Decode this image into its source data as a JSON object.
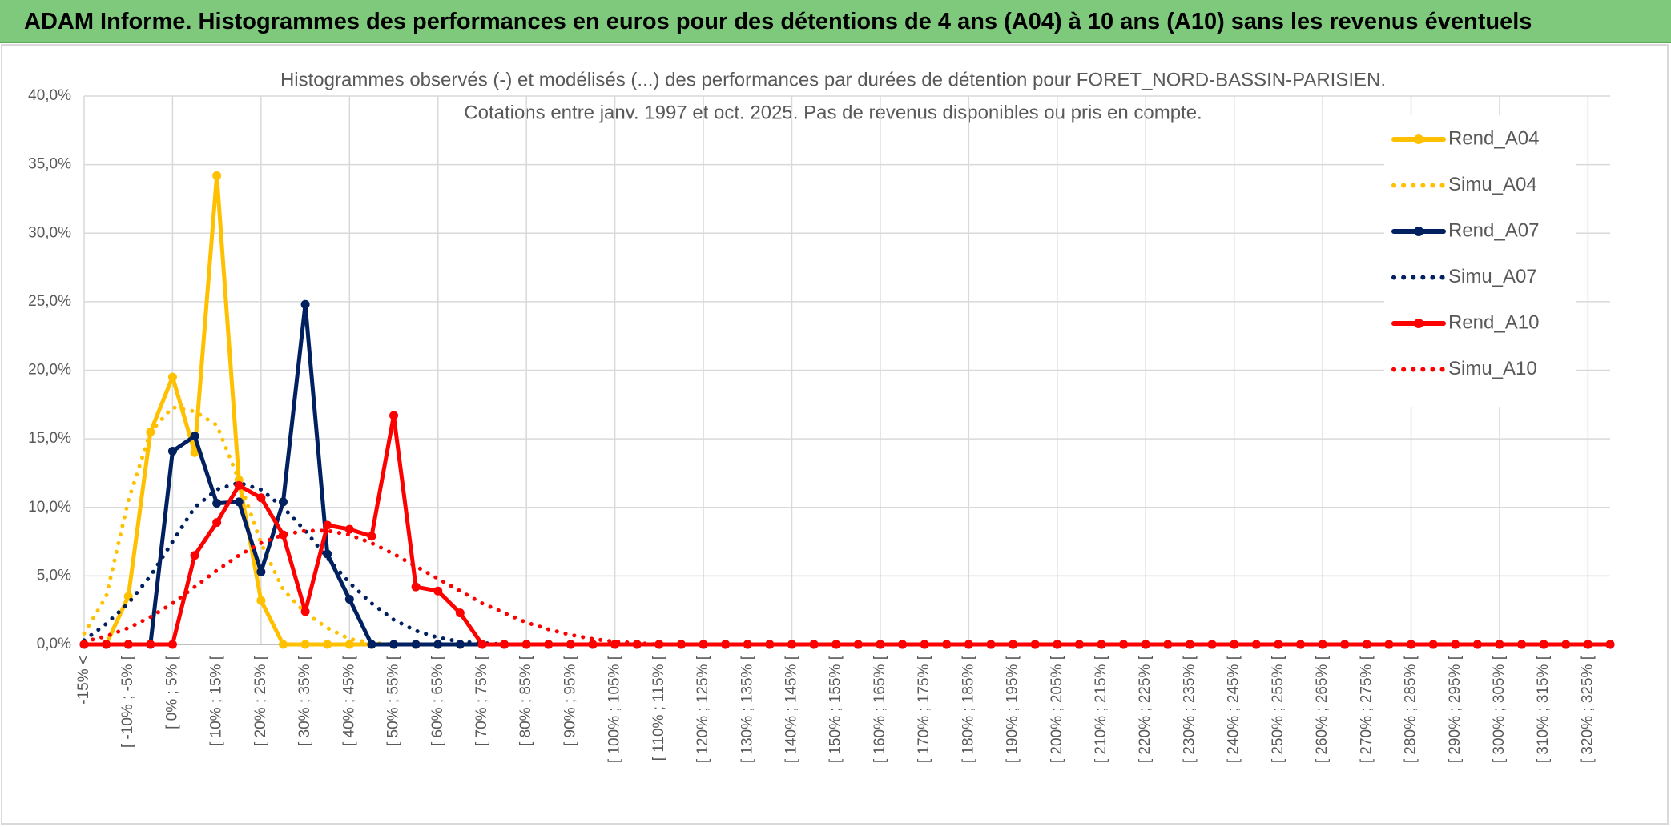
{
  "header": {
    "title": "ADAM Informe. Histogrammes des performances en euros pour des détentions de 4 ans (A04) à 10 ans (A10) sans les revenus éventuels"
  },
  "chart_data": {
    "type": "line",
    "title": "Histogrammes observés (-) et modélisés (...) des performances par durées de détention pour FORET_NORD-BASSIN-PARISIEN.",
    "subtitle": "Cotations entre janv. 1997 et oct. 2025. Pas de revenus disponibles ou pris en compte.",
    "categories": [
      "-15% <",
      null,
      "[ -10% ; -5% [",
      null,
      "[ 0% ; 5% [",
      null,
      "[ 10% ; 15% [",
      null,
      "[ 20% ; 25% [",
      null,
      "[ 30% ; 35% [",
      null,
      "[ 40% ; 45% [",
      null,
      "[ 50% ; 55% [",
      null,
      "[ 60% ; 65% [",
      null,
      "[ 70% ; 75% [",
      null,
      "[ 80% ; 85% [",
      null,
      "[ 90% ; 95% [",
      null,
      "[ 100% ; 105% [",
      null,
      "[ 110% ; 115% [",
      null,
      "[ 120% ; 125% [",
      null,
      "[ 130% ; 135% [",
      null,
      "[ 140% ; 145% [",
      null,
      "[ 150% ; 155% [",
      null,
      "[ 160% ; 165% [",
      null,
      "[ 170% ; 175% [",
      null,
      "[ 180% ; 185% [",
      null,
      "[ 190% ; 195% [",
      null,
      "[ 200% ; 205% [",
      null,
      "[ 210% ; 215% [",
      null,
      "[ 220% ; 225% [",
      null,
      "[ 230% ; 235% [",
      null,
      "[ 240% ; 245% [",
      null,
      "[ 250% ; 255% [",
      null,
      "[ 260% ; 265% [",
      null,
      "[ 270% ; 275% [",
      null,
      "[ 280% ; 285% [",
      null,
      "[ 290% ; 295% [",
      null,
      "[ 300% ; 305% [",
      null,
      "[ 310% ; 315% [",
      null,
      "[ 320% ; 325% [",
      null
    ],
    "series": [
      {
        "name": "Rend_A04",
        "color": "#ffc000",
        "style": "solid",
        "values": [
          0,
          0,
          3.5,
          15.5,
          19.5,
          14,
          34.2,
          12,
          3.2,
          0,
          0,
          0,
          0,
          0,
          0,
          0,
          0,
          0,
          0,
          0,
          0,
          0,
          0,
          0,
          0,
          0,
          0,
          0,
          0,
          0,
          0,
          0,
          0,
          0,
          0,
          0,
          0,
          0,
          0,
          0,
          0,
          0,
          0,
          0,
          0,
          0,
          0,
          0,
          0,
          0,
          0,
          0,
          0,
          0,
          0,
          0,
          0,
          0,
          0,
          0,
          0,
          0,
          0,
          0,
          0,
          0,
          0,
          0,
          0,
          0
        ]
      },
      {
        "name": "Simu_A04",
        "color": "#ffc000",
        "style": "dotted",
        "values": [
          0.8,
          3.5,
          10.5,
          15.5,
          17.3,
          17,
          16,
          12,
          7.4,
          4,
          2.3,
          1.2,
          0.4,
          0.1,
          0,
          0,
          0,
          0,
          0,
          0,
          0,
          0,
          0,
          0,
          0,
          0,
          0,
          0,
          0,
          0,
          0,
          0,
          0,
          0,
          0,
          0,
          0,
          0,
          0,
          0,
          0,
          0,
          0,
          0,
          0,
          0,
          0,
          0,
          0,
          0,
          0,
          0,
          0,
          0,
          0,
          0,
          0,
          0,
          0,
          0,
          0,
          0,
          0,
          0,
          0,
          0,
          0,
          0,
          0,
          0
        ]
      },
      {
        "name": "Rend_A07",
        "color": "#002060",
        "style": "solid",
        "values": [
          0,
          0,
          0,
          0,
          14.1,
          15.2,
          10.3,
          10.4,
          5.3,
          10.4,
          24.8,
          6.6,
          3.3,
          0,
          0,
          0,
          0,
          0,
          0,
          0,
          0,
          0,
          0,
          0,
          0,
          0,
          0,
          0,
          0,
          0,
          0,
          0,
          0,
          0,
          0,
          0,
          0,
          0,
          0,
          0,
          0,
          0,
          0,
          0,
          0,
          0,
          0,
          0,
          0,
          0,
          0,
          0,
          0,
          0,
          0,
          0,
          0,
          0,
          0,
          0,
          0,
          0,
          0,
          0,
          0,
          0,
          0,
          0,
          0,
          0
        ]
      },
      {
        "name": "Simu_A07",
        "color": "#002060",
        "style": "dotted",
        "values": [
          0.3,
          1.5,
          3,
          5,
          7.5,
          10,
          11.3,
          11.8,
          11.3,
          10,
          8.3,
          6.3,
          4.5,
          3,
          1.8,
          1,
          0.5,
          0.2,
          0.1,
          0,
          0,
          0,
          0,
          0,
          0,
          0,
          0,
          0,
          0,
          0,
          0,
          0,
          0,
          0,
          0,
          0,
          0,
          0,
          0,
          0,
          0,
          0,
          0,
          0,
          0,
          0,
          0,
          0,
          0,
          0,
          0,
          0,
          0,
          0,
          0,
          0,
          0,
          0,
          0,
          0,
          0,
          0,
          0,
          0,
          0,
          0,
          0,
          0,
          0,
          0
        ]
      },
      {
        "name": "Rend_A10",
        "color": "#ff0000",
        "style": "solid",
        "values": [
          0,
          0,
          0,
          0,
          0,
          6.5,
          8.9,
          11.6,
          10.7,
          8,
          2.4,
          8.7,
          8.4,
          7.9,
          16.7,
          4.2,
          3.9,
          2.3,
          0,
          0,
          0,
          0,
          0,
          0,
          0,
          0,
          0,
          0,
          0,
          0,
          0,
          0,
          0,
          0,
          0,
          0,
          0,
          0,
          0,
          0,
          0,
          0,
          0,
          0,
          0,
          0,
          0,
          0,
          0,
          0,
          0,
          0,
          0,
          0,
          0,
          0,
          0,
          0,
          0,
          0,
          0,
          0,
          0,
          0,
          0,
          0,
          0,
          0,
          0,
          0
        ]
      },
      {
        "name": "Simu_A10",
        "color": "#ff0000",
        "style": "dotted",
        "values": [
          0.2,
          0.6,
          1.2,
          2,
          3,
          4.2,
          5.4,
          6.5,
          7.4,
          8,
          8.3,
          8.3,
          8,
          7.4,
          6.6,
          5.7,
          4.8,
          3.9,
          3,
          2.3,
          1.6,
          1.1,
          0.7,
          0.4,
          0.2,
          0.1,
          0,
          0,
          0,
          0,
          0,
          0,
          0,
          0,
          0,
          0,
          0,
          0,
          0,
          0,
          0,
          0,
          0,
          0,
          0,
          0,
          0,
          0,
          0,
          0,
          0,
          0,
          0,
          0,
          0,
          0,
          0,
          0,
          0,
          0,
          0,
          0,
          0,
          0,
          0,
          0,
          0,
          0,
          0,
          0
        ]
      }
    ],
    "ylim": [
      0,
      40
    ],
    "yticks": [
      {
        "value": 0,
        "label": "0,0%"
      },
      {
        "value": 5,
        "label": "5,0%"
      },
      {
        "value": 10,
        "label": "10,0%"
      },
      {
        "value": 15,
        "label": "15,0%"
      },
      {
        "value": 20,
        "label": "20,0%"
      },
      {
        "value": 25,
        "label": "25,0%"
      },
      {
        "value": 30,
        "label": "30,0%"
      },
      {
        "value": 35,
        "label": "35,0%"
      },
      {
        "value": 40,
        "label": "40,0%"
      }
    ],
    "grid": true,
    "legend": "right"
  }
}
